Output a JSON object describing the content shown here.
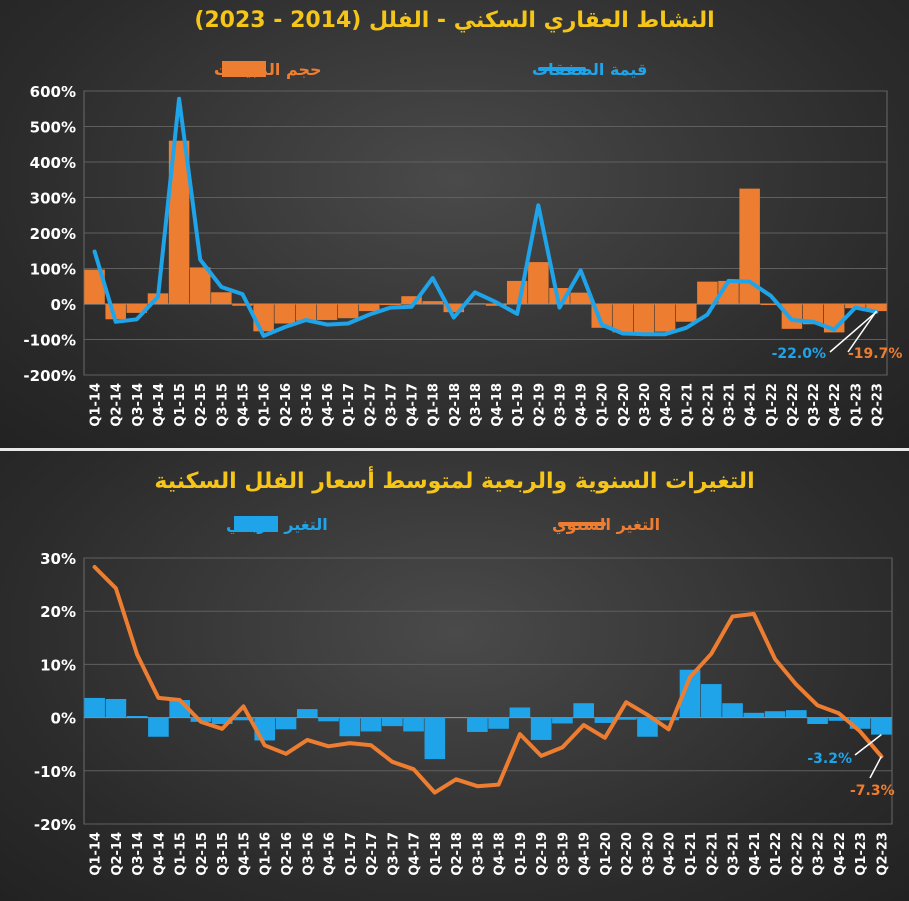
{
  "chart_data": [
    {
      "type": "bar+line",
      "title": "النشاط العقاري السكني - الفلل (2014 - 2023)",
      "legend": {
        "bar": "حجم المبيعات",
        "line": "قيمة الصفقات"
      },
      "categories": [
        "Q1-14",
        "Q2-14",
        "Q3-14",
        "Q4-14",
        "Q1-15",
        "Q2-15",
        "Q3-15",
        "Q4-15",
        "Q1-16",
        "Q2-16",
        "Q3-16",
        "Q4-16",
        "Q1-17",
        "Q2-17",
        "Q3-17",
        "Q4-17",
        "Q1-18",
        "Q2-18",
        "Q3-18",
        "Q4-18",
        "Q1-19",
        "Q2-19",
        "Q3-19",
        "Q4-19",
        "Q1-20",
        "Q2-20",
        "Q3-20",
        "Q4-20",
        "Q1-21",
        "Q2-21",
        "Q3-21",
        "Q4-21",
        "Q1-22",
        "Q2-22",
        "Q3-22",
        "Q4-22",
        "Q1-23",
        "Q2-23"
      ],
      "tick_labels": [
        "Q1-14",
        "Q2-14",
        "Q3-14",
        "Q4-14",
        "Q1-15",
        "Q2-15",
        "Q3-15",
        "Q4-15",
        "Q1-16",
        "Q2-16",
        "Q3-16",
        "Q4-16",
        "Q1-17",
        "Q2-17",
        "Q3-17",
        "Q4-17",
        "Q1-18",
        "Q2-18",
        "Q3-18",
        "Q4-18",
        "Q1-19",
        "Q2-19",
        "Q3-19",
        "Q4-19",
        "Q1-20",
        "Q2-20",
        "Q3-20",
        "Q4-20",
        "Q1-21",
        "Q2-21",
        "Q3-21",
        "Q4-21",
        "Q1-22",
        "Q2-22",
        "Q3-22",
        "Q4-22",
        "Q1-23",
        "Q2-23"
      ],
      "bar_series": {
        "name": "حجم المبيعات",
        "color": "#ed7d31",
        "values": [
          97,
          -43,
          -25,
          30,
          460,
          103,
          33,
          -5,
          -77,
          -55,
          -47,
          -45,
          -40,
          -20,
          -3,
          22,
          8,
          -23,
          2,
          -5,
          65,
          118,
          45,
          32,
          -67,
          -80,
          -82,
          -78,
          -50,
          63,
          65,
          325,
          -3,
          -70,
          -57,
          -80,
          -12,
          -20
        ]
      },
      "line_series": {
        "name": "قيمة الصفقات",
        "color": "#1fa4ea",
        "values": [
          148,
          -50,
          -43,
          20,
          578,
          125,
          48,
          28,
          -90,
          -65,
          -45,
          -58,
          -55,
          -30,
          -10,
          -8,
          73,
          -38,
          33,
          5,
          -28,
          278,
          -10,
          95,
          -58,
          -83,
          -85,
          -85,
          -67,
          -30,
          65,
          63,
          23,
          -45,
          -50,
          -72,
          -10,
          -22
        ]
      },
      "ylim": [
        -200,
        600
      ],
      "y_ticks": [
        -200,
        -100,
        0,
        100,
        200,
        300,
        400,
        500,
        600
      ],
      "y_tick_labels": [
        "-200%",
        "-100%",
        "0%",
        "100%",
        "200%",
        "300%",
        "400%",
        "500%",
        "600%"
      ],
      "annotations": [
        {
          "label": "-22.0%",
          "series": "line",
          "color": "#1fa4ea"
        },
        {
          "label": "-19.7%",
          "series": "bar",
          "color": "#ed7d31"
        }
      ]
    },
    {
      "type": "bar+line",
      "title": "التغيرات السنوية والربعية لمتوسط أسعار الفلل السكنية",
      "legend": {
        "bar": "التغير الربعي",
        "line": "التغير السنوي"
      },
      "categories": [
        "Q1-14",
        "Q2-14",
        "Q3-14",
        "Q4-14",
        "Q1-15",
        "Q2-15",
        "Q3-15",
        "Q4-15",
        "Q1-16",
        "Q2-16",
        "Q3-16",
        "Q4-16",
        "Q1-17",
        "Q2-17",
        "Q3-17",
        "Q4-17",
        "Q1-18",
        "Q2-18",
        "Q3-18",
        "Q4-18",
        "Q1-19",
        "Q2-19",
        "Q3-19",
        "Q4-19",
        "Q1-20",
        "Q2-20",
        "Q3-20",
        "Q4-20",
        "Q1-21",
        "Q2-21",
        "Q3-21",
        "Q4-21",
        "Q1-22",
        "Q2-22",
        "Q3-22",
        "Q4-22",
        "Q1-23",
        "Q2-23"
      ],
      "tick_labels": [
        "Q1-14",
        "Q2-14",
        "Q3-14",
        "Q4-14",
        "Q1-15",
        "Q2-15",
        "Q3-15",
        "Q4-15",
        "Q1-16",
        "Q2-16",
        "Q3-16",
        "Q4-16",
        "Q1-17",
        "Q2-17",
        "Q3-17",
        "Q4-17",
        "Q1-18",
        "Q2-18",
        "Q3-18",
        "Q4-18",
        "Q1-19",
        "Q2-19",
        "Q3-19",
        "Q4-19",
        "Q1-20",
        "Q2-20",
        "Q3-20",
        "Q4-20",
        "Q1-21",
        "Q2-21",
        "Q3-21",
        "Q4-21",
        "Q1-22",
        "Q2-22",
        "Q3-22",
        "Q4-22",
        "Q1-23",
        "Q2-23"
      ],
      "bar_series": {
        "name": "التغير الربعي",
        "color": "#1fa4ea",
        "values": [
          3.7,
          3.5,
          0.3,
          -3.6,
          3.3,
          -0.8,
          -1.2,
          -0.5,
          -4.3,
          -2.2,
          1.6,
          -0.7,
          -3.5,
          -2.6,
          -1.6,
          -2.6,
          -7.8,
          0.1,
          -2.7,
          -2.1,
          1.9,
          -4.2,
          -1.1,
          2.7,
          -1.0,
          -0.4,
          -3.6,
          -0.5,
          9.0,
          6.3,
          2.7,
          0.9,
          1.2,
          1.4,
          -1.2,
          -0.6,
          -2.1,
          -3.2
        ]
      },
      "line_series": {
        "name": "التغير السنوي",
        "color": "#ed7d31",
        "values": [
          28.3,
          24.3,
          11.8,
          3.7,
          3.3,
          -0.8,
          -2.1,
          2.1,
          -5.2,
          -6.8,
          -4.2,
          -5.4,
          -4.8,
          -5.2,
          -8.3,
          -9.7,
          -14.1,
          -11.6,
          -12.9,
          -12.6,
          -3.1,
          -7.2,
          -5.6,
          -1.4,
          -3.8,
          2.9,
          0.5,
          -2.2,
          7.6,
          12.0,
          19.0,
          19.5,
          11.0,
          6.2,
          2.3,
          0.8,
          -2.6,
          -7.3
        ]
      },
      "ylim": [
        -20,
        30
      ],
      "y_ticks": [
        -20,
        -10,
        0,
        10,
        20,
        30
      ],
      "y_tick_labels": [
        "-20%",
        "-10%",
        "0%",
        "10%",
        "20%",
        "30%"
      ],
      "annotations": [
        {
          "label": "-3.2%",
          "series": "bar",
          "color": "#1fa4ea"
        },
        {
          "label": "-7.3%",
          "series": "line",
          "color": "#ed7d31"
        }
      ]
    }
  ]
}
